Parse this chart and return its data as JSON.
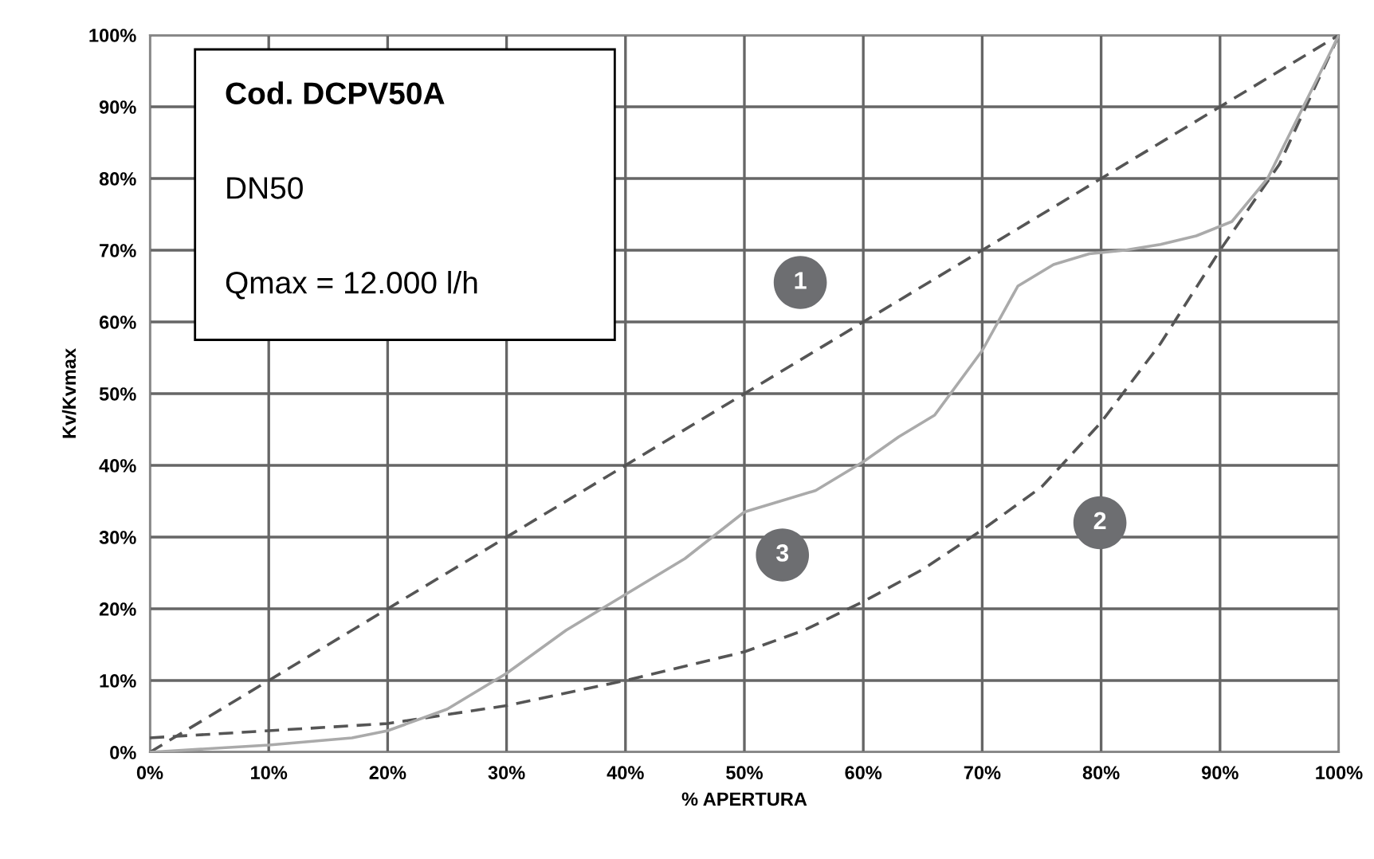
{
  "chart_data": {
    "type": "line",
    "xlabel": "% APERTURA",
    "ylabel": "Kv/Kvmax",
    "series": [
      {
        "color": "#555555",
        "line_style": "dashed",
        "x": [
          0,
          100
        ],
        "values": [
          0,
          100
        ]
      },
      {
        "color": "#555555",
        "line_style": "dashed",
        "x": [
          0,
          10,
          20,
          30,
          40,
          50,
          55,
          60,
          65,
          70,
          75,
          80,
          85,
          90,
          95,
          100
        ],
        "values": [
          2,
          3,
          4,
          6.5,
          10,
          14,
          17,
          21,
          25.5,
          31,
          37,
          46,
          57,
          70,
          82,
          100
        ]
      },
      {
        "color": "#aaaaaa",
        "line_style": "solid",
        "x": [
          0,
          10,
          17,
          20,
          25,
          30,
          35,
          40,
          45,
          50,
          53,
          56,
          60,
          63,
          66,
          70,
          73,
          76,
          79,
          82,
          85,
          88,
          91,
          94,
          97,
          100
        ],
        "values": [
          0,
          1,
          2,
          3,
          6,
          11,
          17,
          22,
          27,
          33.5,
          35,
          36.5,
          40.5,
          44,
          47,
          56,
          65,
          68,
          69.5,
          70,
          70.8,
          72,
          74,
          80,
          90,
          100
        ]
      }
    ],
    "xlim": [
      0,
      100
    ],
    "ylim": [
      0,
      100
    ],
    "xticks": [
      {
        "value": 0,
        "label": "0%"
      },
      {
        "value": 10,
        "label": "10%"
      },
      {
        "value": 20,
        "label": "20%"
      },
      {
        "value": 30,
        "label": "30%"
      },
      {
        "value": 40,
        "label": "40%"
      },
      {
        "value": 50,
        "label": "50%"
      },
      {
        "value": 60,
        "label": "60%"
      },
      {
        "value": 70,
        "label": "70%"
      },
      {
        "value": 80,
        "label": "80%"
      },
      {
        "value": 90,
        "label": "90%"
      },
      {
        "value": 100,
        "label": "100%"
      }
    ],
    "yticks": [
      {
        "value": 0,
        "label": "0%"
      },
      {
        "value": 10,
        "label": "10%"
      },
      {
        "value": 20,
        "label": "20%"
      },
      {
        "value": 30,
        "label": "30%"
      },
      {
        "value": 40,
        "label": "40%"
      },
      {
        "value": 50,
        "label": "50%"
      },
      {
        "value": 60,
        "label": "60%"
      },
      {
        "value": 70,
        "label": "70%"
      },
      {
        "value": 80,
        "label": "80%"
      },
      {
        "value": 90,
        "label": "90%"
      },
      {
        "value": 100,
        "label": "100%"
      }
    ],
    "grid": true,
    "legend": false,
    "marker": "none",
    "annotations": [
      "Cod. DCPV50A",
      "DN50",
      "Qmax = 12.000 l/h",
      {
        "text": "1",
        "x": 54.7,
        "y": 65.5
      },
      {
        "text": "2",
        "x": 79.9,
        "y": 32
      },
      {
        "text": "3",
        "x": 53.2,
        "y": 27.5
      }
    ]
  }
}
